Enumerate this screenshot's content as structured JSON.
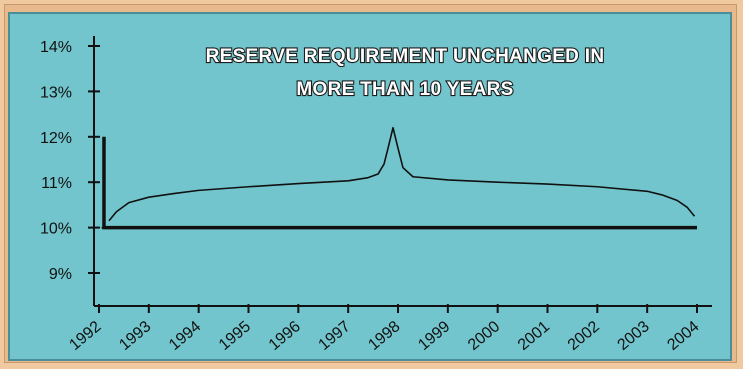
{
  "chart_data": {
    "type": "line",
    "title": [
      "RESERVE REQUIREMENT UNCHANGED IN",
      "MORE THAN 10 YEARS"
    ],
    "xlabel": "",
    "ylabel": "",
    "ylim": [
      9,
      14.3
    ],
    "xlim": [
      1992,
      2004
    ],
    "y_ticks": [
      9,
      10,
      11,
      12,
      13,
      14
    ],
    "y_tick_labels": [
      "9%",
      "10%",
      "11%",
      "12%",
      "13%",
      "14%"
    ],
    "x_ticks": [
      1992,
      1993,
      1994,
      1995,
      1996,
      1997,
      1998,
      1999,
      2000,
      2001,
      2002,
      2003,
      2004
    ],
    "x_tick_labels": [
      "1992",
      "1993",
      "1994",
      "1995",
      "1996",
      "1997",
      "1998",
      "1999",
      "2000",
      "2001",
      "2002",
      "2003",
      "2004"
    ],
    "series": [
      {
        "style": "thin-curve",
        "x": [
          1992.2,
          1992.35,
          1992.6,
          1993,
          1993.5,
          1994,
          1995,
          1996,
          1997,
          1997.4,
          1997.6,
          1997.72,
          1997.8,
          1997.9,
          1998,
          1998.1,
          1998.3,
          1999,
          2000,
          2001,
          2002,
          2003,
          2003.3,
          2003.6,
          2003.8,
          2003.95
        ],
        "y": [
          10.15,
          10.35,
          10.55,
          10.67,
          10.75,
          10.82,
          10.9,
          10.97,
          11.03,
          11.1,
          11.18,
          11.4,
          11.75,
          12.2,
          11.75,
          11.32,
          11.12,
          11.05,
          11.0,
          10.96,
          10.9,
          10.8,
          10.72,
          10.6,
          10.45,
          10.25
        ]
      },
      {
        "style": "thick-step",
        "x": [
          1992.1,
          1992.1,
          2004.0
        ],
        "y": [
          12.0,
          10.0,
          10.0
        ]
      }
    ],
    "reference_line": {
      "style": "dotted",
      "y": 10,
      "x_from": 1991.85,
      "x_to": 1992.1
    },
    "colors": {
      "background": "#72c5cc",
      "frame": "#e9b98e",
      "line": "#111111",
      "title_fill": "#ffffff",
      "title_outline": "#1c1c1c"
    },
    "grid": false,
    "legend": "none"
  }
}
